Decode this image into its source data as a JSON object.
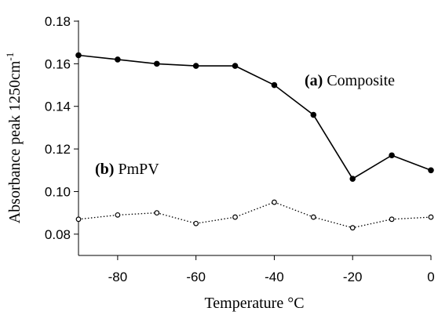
{
  "chart_data": {
    "type": "line",
    "title": "",
    "xlabel": "Temperature °C",
    "ylabel": "Absorbance peak 1250cm",
    "ylabel_superscript": "-1",
    "xlim": [
      -90,
      0
    ],
    "ylim": [
      0.07,
      0.18
    ],
    "x_ticks": [
      -80,
      -60,
      -40,
      -20,
      0
    ],
    "x_tick_labels": [
      "-80",
      "-60",
      "-40",
      "-20",
      "0"
    ],
    "y_ticks": [
      0.08,
      0.1,
      0.12,
      0.14,
      0.16,
      0.18
    ],
    "y_tick_labels": [
      "0.08",
      "0.10",
      "0.12",
      "0.14",
      "0.16",
      "0.18"
    ],
    "grid": false,
    "series": [
      {
        "name": "Composite",
        "label_bold": "(a)",
        "label_text": " Composite",
        "style": "solid",
        "marker": "filled-circle",
        "x": [
          -90,
          -80,
          -70,
          -60,
          -50,
          -40,
          -30,
          -20,
          -10,
          0
        ],
        "values": [
          0.164,
          0.162,
          0.16,
          0.159,
          0.159,
          0.15,
          0.136,
          0.106,
          0.117,
          0.11
        ]
      },
      {
        "name": "PmPV",
        "label_bold": "(b)",
        "label_text": " PmPV",
        "style": "dotted",
        "marker": "open-circle",
        "x": [
          -90,
          -80,
          -70,
          -60,
          -50,
          -40,
          -30,
          -20,
          -10,
          0
        ],
        "values": [
          0.087,
          0.089,
          0.09,
          0.085,
          0.088,
          0.095,
          0.088,
          0.083,
          0.087,
          0.088
        ]
      }
    ]
  }
}
